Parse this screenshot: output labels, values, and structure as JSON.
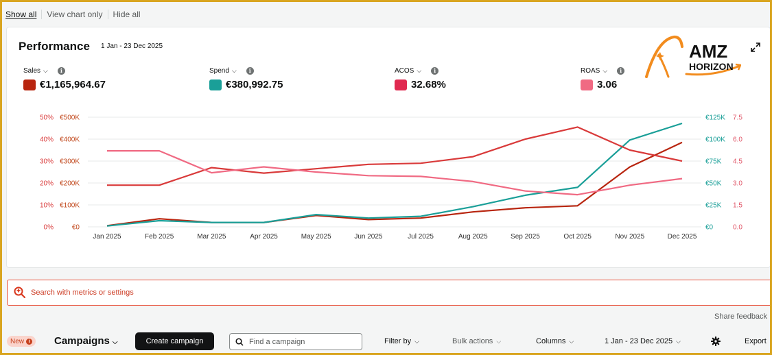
{
  "view_options": [
    "Show all",
    "View chart only",
    "Hide all"
  ],
  "performance": {
    "title": "Performance",
    "date_range": "1 Jan - 23 Dec 2025"
  },
  "logo": {
    "line1": "AMZ",
    "line2": "HORIZON",
    "color": "#f28c1e"
  },
  "metrics": [
    {
      "label": "Sales",
      "value": "€1,165,964.67",
      "color": "#b8250f"
    },
    {
      "label": "Spend",
      "value": "€380,992.75",
      "color": "#1a9f98"
    },
    {
      "label": "ACOS",
      "value": "32.68%",
      "color": "#e02950"
    },
    {
      "label": "ROAS",
      "value": "3.06",
      "color": "#f06a83"
    }
  ],
  "chart_data": {
    "type": "line",
    "categories": [
      "Jan 2025",
      "Feb 2025",
      "Mar 2025",
      "Apr 2025",
      "May 2025",
      "Jun 2025",
      "Jul 2025",
      "Aug 2025",
      "Sep 2025",
      "Oct 2025",
      "Nov 2025",
      "Dec 2025"
    ],
    "axes": {
      "left_acos": [
        "0%",
        "10%",
        "20%",
        "30%",
        "40%",
        "50%"
      ],
      "left_sales": [
        "€0",
        "€100K",
        "€200K",
        "€300K",
        "€400K",
        "€500K"
      ],
      "right_spend": [
        "€0",
        "€25K",
        "€50K",
        "€75K",
        "€100K",
        "€125K"
      ],
      "right_roas": [
        "0.0",
        "1.5",
        "3.0",
        "4.5",
        "6.0",
        "7.5"
      ]
    },
    "series": [
      {
        "name": "Sales",
        "axis": "left_sales",
        "color": "#b8250f",
        "max": 500,
        "values": [
          5,
          37,
          20,
          20,
          52,
          33,
          40,
          68,
          87,
          96,
          273,
          385
        ]
      },
      {
        "name": "Spend",
        "axis": "right_spend",
        "color": "#1a9f98",
        "max": 125,
        "values": [
          1,
          7,
          5,
          5,
          14,
          10,
          12,
          23,
          36,
          45,
          99,
          118
        ]
      },
      {
        "name": "ACOS",
        "axis": "left_acos",
        "color": "#d93a3a",
        "max": 50,
        "values": [
          19,
          19,
          27,
          24.5,
          26.5,
          28.5,
          29,
          32,
          40,
          45.5,
          35,
          30
        ]
      },
      {
        "name": "ROAS",
        "axis": "right_roas",
        "color": "#f06a83",
        "max": 7.5,
        "values": [
          5.2,
          5.2,
          3.7,
          4.1,
          3.75,
          3.5,
          3.45,
          3.1,
          2.45,
          2.2,
          2.85,
          3.3
        ]
      }
    ],
    "ylim_fraction": [
      0,
      1
    ],
    "grid": true
  },
  "search": {
    "placeholder": "Search with metrics or settings"
  },
  "share_feedback": "Share feedback",
  "bottom_bar": {
    "badge": "New",
    "section": "Campaigns",
    "create_button": "Create campaign",
    "find_placeholder": "Find a campaign",
    "filter": "Filter by",
    "bulk": "Bulk actions",
    "columns": "Columns",
    "date_range": "1 Jan - 23 Dec 2025",
    "export": "Export"
  }
}
